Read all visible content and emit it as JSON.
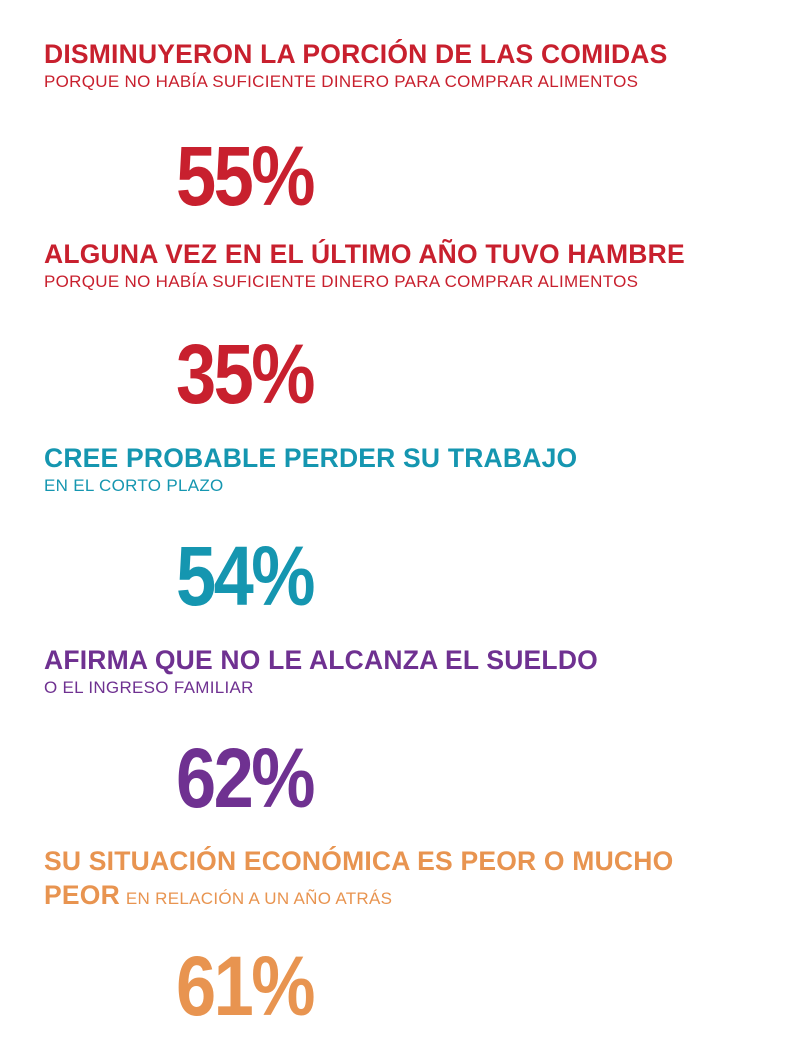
{
  "colors": {
    "red": "#c8202e",
    "teal": "#1596b0",
    "purple": "#6f3191",
    "orange": "#e89450"
  },
  "stats": [
    {
      "title": "DISMINUYERON LA PORCIÓN DE LAS COMIDAS",
      "subtitle": "PORQUE NO HABÍA SUFICIENTE DINERO PARA COMPRAR ALIMENTOS",
      "value": "55%",
      "color": "#c8202e"
    },
    {
      "title": "ALGUNA VEZ EN EL ÚLTIMO AÑO TUVO HAMBRE",
      "subtitle": "PORQUE NO HABÍA SUFICIENTE DINERO PARA COMPRAR ALIMENTOS",
      "value": "35%",
      "color": "#c8202e"
    },
    {
      "title": "CREE PROBABLE PERDER SU TRABAJO",
      "subtitle": "EN EL CORTO PLAZO",
      "value": "54%",
      "color": "#1596b0"
    },
    {
      "title": "AFIRMA QUE NO LE ALCANZA EL SUELDO",
      "subtitle": "O EL INGRESO FAMILIAR",
      "value": "62%",
      "color": "#6f3191"
    },
    {
      "title": "SU SITUACIÓN ECONÓMICA ES PEOR O MUCHO PEOR",
      "subtitle": "EN RELACIÓN A UN AÑO ATRÁS",
      "value": "61%",
      "color": "#e89450"
    }
  ]
}
